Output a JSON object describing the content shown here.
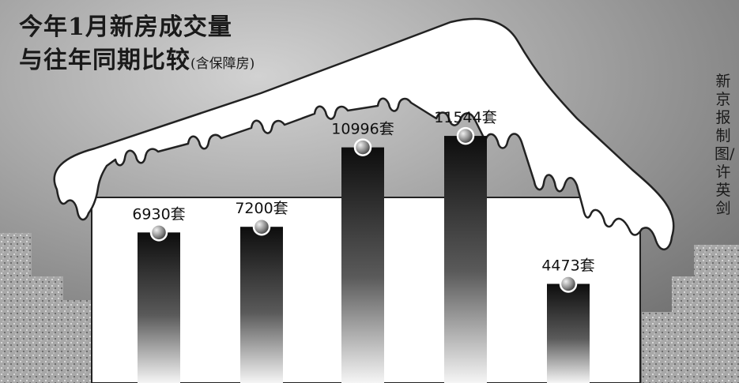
{
  "chart_data": {
    "type": "bar",
    "title": "今年1月新房成交量",
    "subtitle": "与往年同期比较",
    "subtitle_note": "(含保障房)",
    "categories": [
      "",
      "",
      "",
      "",
      ""
    ],
    "values": [
      6930,
      7200,
      10996,
      11544,
      4473
    ],
    "value_labels": [
      "6930套",
      "7200套",
      "10996套",
      "11544套",
      "4473套"
    ],
    "unit": "套",
    "xlabel": "",
    "ylabel": "",
    "grid": false,
    "legend": "none"
  },
  "credit": "新京报制图/许英剑",
  "colors": {
    "background": "#8e8e8e",
    "house": "#ffffff",
    "bar_top": "#0d0d0d",
    "bar_bottom": "#f5f5f5",
    "text": "#1a1a1a"
  }
}
